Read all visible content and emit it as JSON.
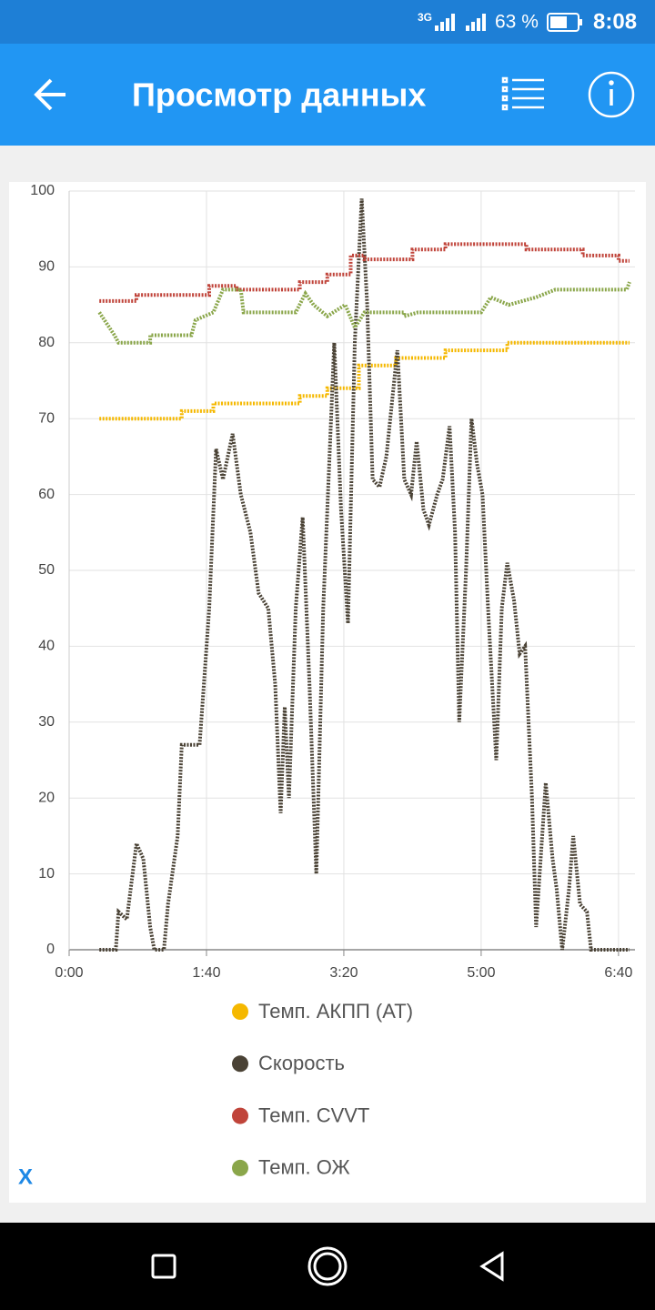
{
  "status_bar": {
    "network": "3G",
    "battery": "63 %",
    "time": "8:08"
  },
  "app_bar": {
    "title": "Просмотр данных"
  },
  "close_label": "X",
  "chart_data": {
    "type": "line",
    "xlim": [
      0,
      412
    ],
    "xticks": [
      {
        "value": 0,
        "label": "0:00"
      },
      {
        "value": 100,
        "label": "1:40"
      },
      {
        "value": 200,
        "label": "3:20"
      },
      {
        "value": 300,
        "label": "5:00"
      },
      {
        "value": 400,
        "label": "6:40"
      }
    ],
    "ylim": [
      0,
      100
    ],
    "yticks": [
      0,
      10,
      20,
      30,
      40,
      50,
      60,
      70,
      80,
      90,
      100
    ],
    "grid": true,
    "series": [
      {
        "name": "Темп. АКПП (AT)",
        "color": "#f5b800",
        "x": [
          22,
          82,
          82,
          105,
          105,
          168,
          168,
          188,
          188,
          211,
          211,
          238,
          238,
          274,
          274,
          319,
          319,
          408
        ],
        "values": [
          70,
          70,
          71,
          71,
          72,
          72,
          73,
          73,
          74,
          74,
          77,
          77,
          78,
          78,
          79,
          79,
          80,
          80
        ]
      },
      {
        "name": "Скорость",
        "color": "#4a4235",
        "x": [
          22,
          34,
          36,
          42,
          49,
          54,
          59,
          62,
          69,
          72,
          79,
          82,
          89,
          95,
          102,
          107,
          112,
          119,
          125,
          132,
          138,
          145,
          150,
          154,
          157,
          160,
          165,
          170,
          175,
          180,
          185,
          193,
          198,
          203,
          208,
          213,
          217,
          221,
          226,
          231,
          239,
          244,
          249,
          253,
          258,
          262,
          268,
          272,
          277,
          281,
          284,
          289,
          293,
          297,
          301,
          305,
          311,
          315,
          319,
          324,
          328,
          332,
          337,
          340,
          347,
          352,
          355,
          359,
          364,
          367,
          372,
          377,
          380,
          408
        ],
        "values": [
          0,
          0,
          5,
          4,
          14,
          12,
          3,
          0,
          0,
          6,
          15,
          27,
          27,
          27,
          45,
          66,
          62,
          68,
          60,
          55,
          47,
          45,
          35,
          18,
          32,
          20,
          45,
          57,
          35,
          10,
          45,
          80,
          58,
          43,
          80,
          99,
          85,
          62,
          61,
          65,
          79,
          62,
          60,
          67,
          58,
          56,
          60,
          62,
          69,
          55,
          30,
          50,
          70,
          64,
          60,
          45,
          25,
          45,
          51,
          46,
          39,
          40,
          20,
          3,
          22,
          12,
          8,
          0,
          8,
          15,
          6,
          5,
          0,
          0
        ]
      },
      {
        "name": "Темп. CVVT",
        "color": "#c0443a",
        "x": [
          22,
          49,
          49,
          102,
          102,
          122,
          122,
          168,
          168,
          188,
          188,
          205,
          205,
          215,
          215,
          250,
          250,
          274,
          274,
          333,
          333,
          374,
          374,
          400,
          400,
          408
        ],
        "values": [
          85.5,
          85.5,
          86.3,
          86.3,
          87.5,
          87.5,
          87,
          87,
          88,
          88,
          89,
          89,
          91.5,
          91.5,
          91,
          91,
          92.3,
          92.3,
          93,
          93,
          92.3,
          92.3,
          91.5,
          91.5,
          90.8,
          90.8
        ]
      },
      {
        "name": "Темп. ОЖ",
        "color": "#8aa64a",
        "x": [
          22,
          33,
          36,
          59,
          59,
          89,
          92,
          105,
          112,
          125,
          127,
          165,
          172,
          178,
          188,
          201,
          208,
          215,
          244,
          244,
          254,
          300,
          307,
          320,
          340,
          354,
          406,
          408
        ],
        "values": [
          84,
          81,
          80,
          80,
          81,
          81,
          83,
          84,
          87,
          87,
          84,
          84,
          86.5,
          85,
          83.5,
          85,
          82,
          84,
          84,
          83.5,
          84,
          84,
          86,
          85,
          86,
          87,
          87,
          88
        ]
      }
    ]
  }
}
